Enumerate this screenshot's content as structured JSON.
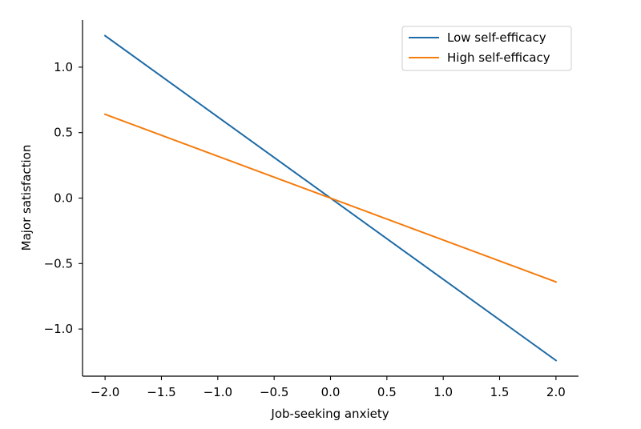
{
  "chart_data": {
    "type": "line",
    "title": "",
    "xlabel": "Job-seeking anxiety",
    "ylabel": "Major satisfaction",
    "xlim": [
      -2.2,
      2.2
    ],
    "ylim": [
      -1.36,
      1.36
    ],
    "xticks": [
      -2.0,
      -1.5,
      -1.0,
      -0.5,
      0.0,
      0.5,
      1.0,
      1.5,
      2.0
    ],
    "xtick_labels": [
      "−2.0",
      "−1.5",
      "−1.0",
      "−0.5",
      "0.0",
      "0.5",
      "1.0",
      "1.5",
      "2.0"
    ],
    "yticks": [
      -1.0,
      -0.5,
      0.0,
      0.5,
      1.0
    ],
    "ytick_labels": [
      "−1.0",
      "−0.5",
      "0.0",
      "0.5",
      "1.0"
    ],
    "grid": false,
    "legend_position": "top-right",
    "series": [
      {
        "name": "Low self-efficacy",
        "color": "#1f6ba5",
        "x": [
          -2.0,
          2.0
        ],
        "y": [
          1.24,
          -1.24
        ]
      },
      {
        "name": "High self-efficacy",
        "color": "#f57c0e",
        "x": [
          -2.0,
          2.0
        ],
        "y": [
          0.64,
          -0.64
        ]
      }
    ]
  }
}
